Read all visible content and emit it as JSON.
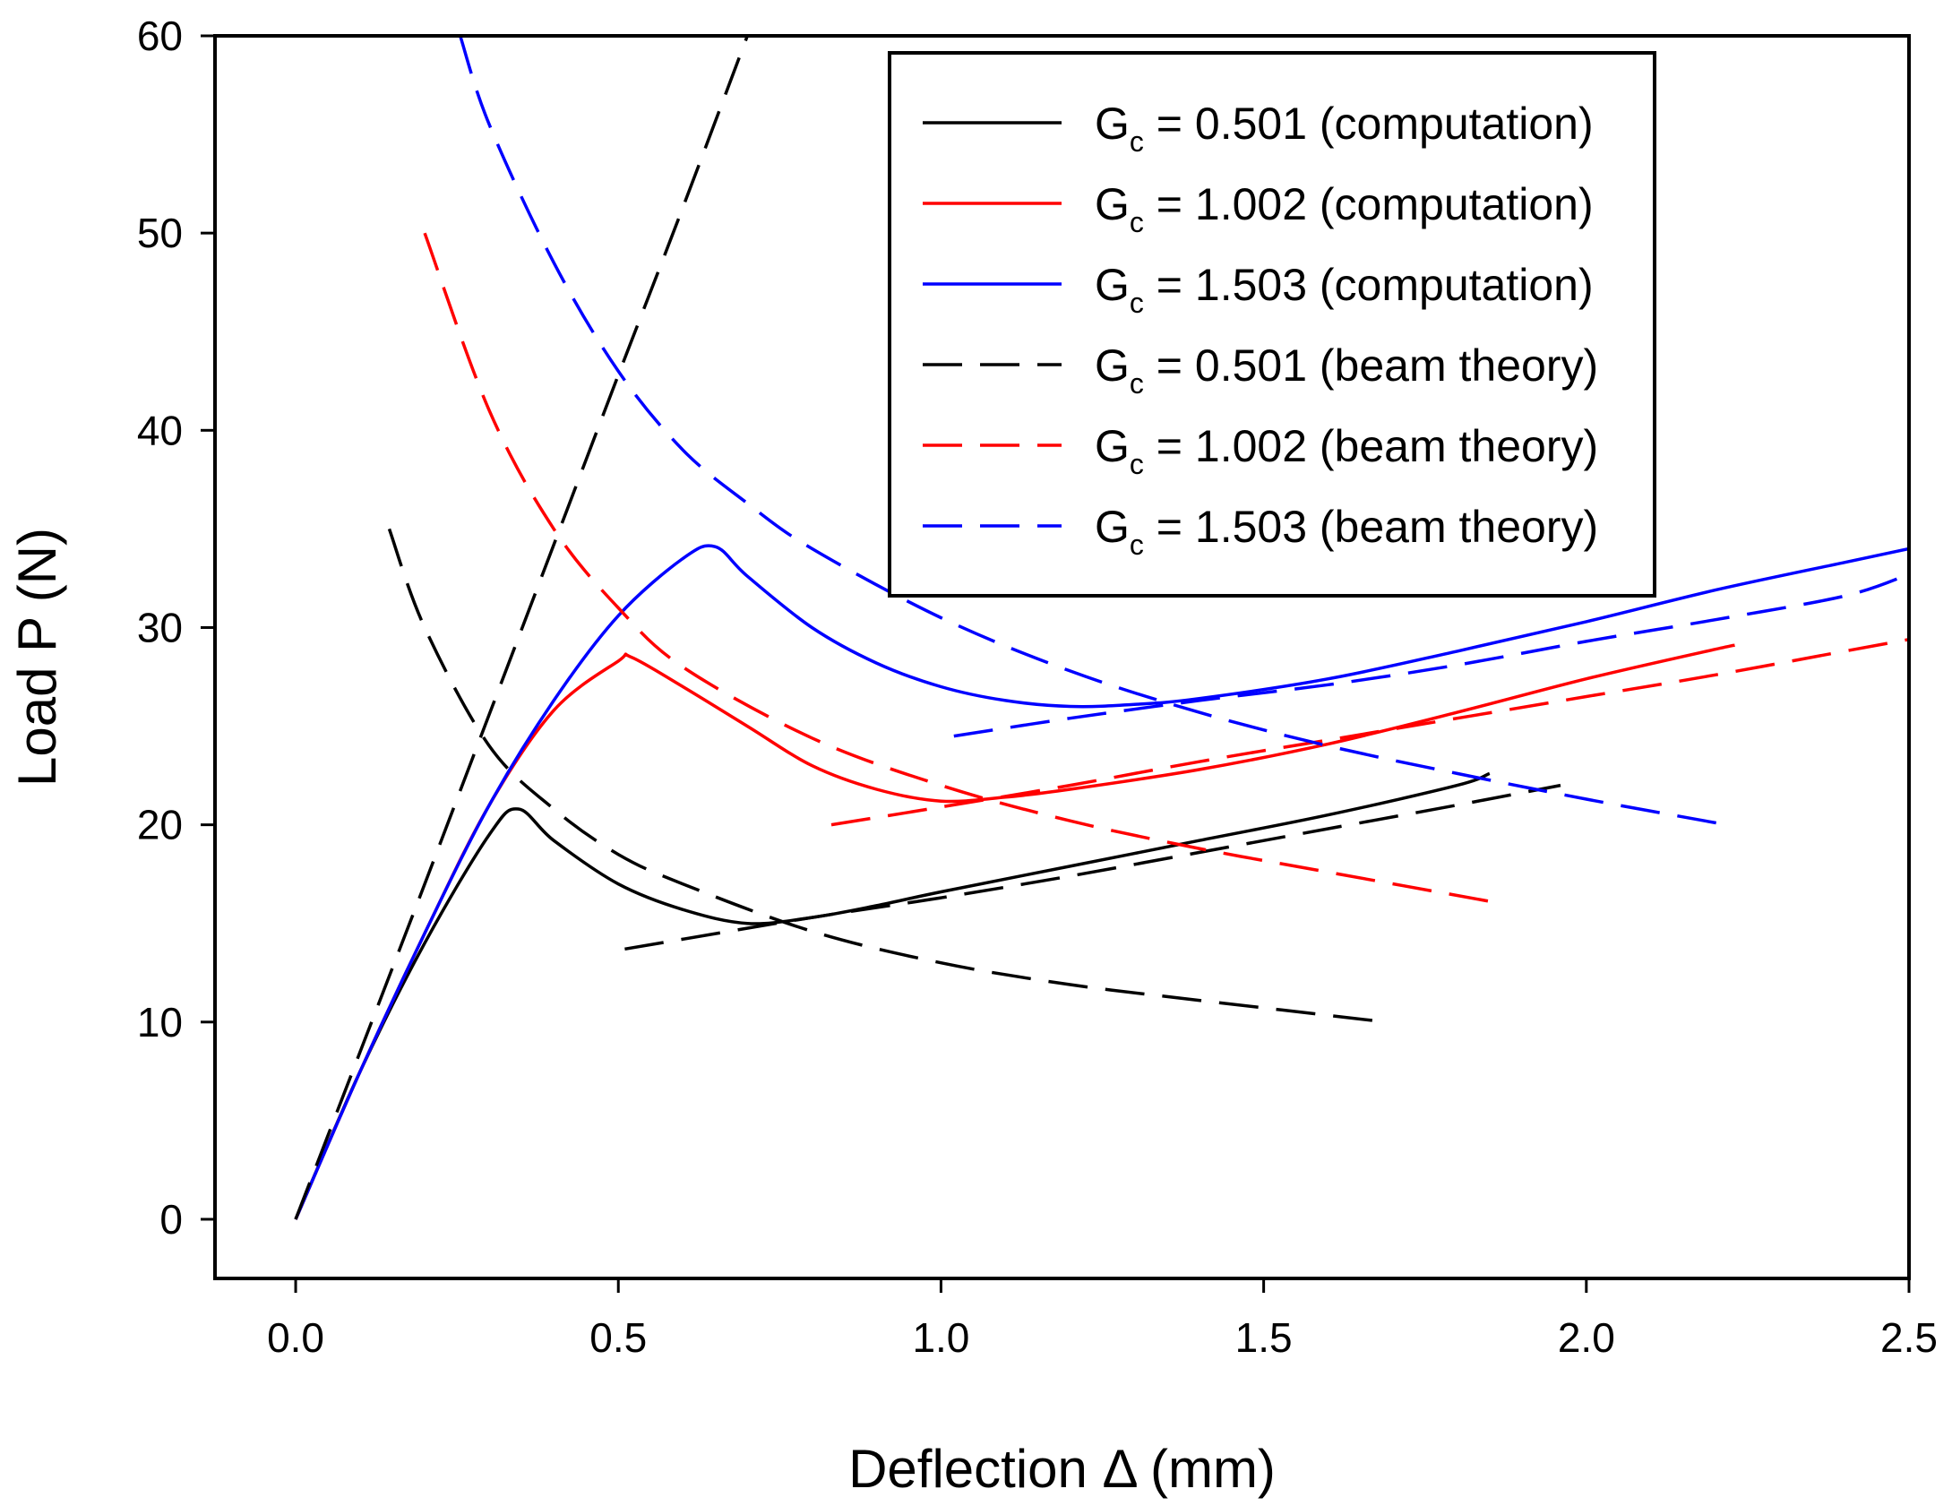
{
  "chart_data": {
    "type": "line",
    "title": "",
    "xlabel": "Deflection Δ (mm)",
    "ylabel": "Load P (N)",
    "xlim": [
      -0.125,
      2.5
    ],
    "ylim": [
      -3,
      60
    ],
    "xticks": [
      0.0,
      0.5,
      1.0,
      1.5,
      2.0,
      2.5
    ],
    "xtick_labels": [
      "0.0",
      "0.5",
      "1.0",
      "1.5",
      "2.0",
      "2.5"
    ],
    "yticks": [
      0,
      10,
      20,
      30,
      40,
      50,
      60
    ],
    "ytick_labels": [
      "0",
      "10",
      "20",
      "30",
      "40",
      "50",
      "60"
    ],
    "grid": false,
    "legend_position": "top-right",
    "series": [
      {
        "name": "Gc = 0.501 (computation)",
        "legend_main": "G",
        "legend_sub": "c",
        "legend_rest": " = 0.501 (computation)",
        "color": "#000000",
        "style": "solid",
        "x": [
          0,
          0.1,
          0.2,
          0.3,
          0.345,
          0.4,
          0.5,
          0.6,
          0.7,
          0.8,
          0.9,
          1.0,
          1.2,
          1.4,
          1.6,
          1.8,
          1.85
        ],
        "y": [
          0,
          7.5,
          14.0,
          19.5,
          20.8,
          19.2,
          17.0,
          15.7,
          15.0,
          15.3,
          15.9,
          16.6,
          17.9,
          19.2,
          20.5,
          22.0,
          22.6
        ]
      },
      {
        "name": "Gc = 1.002 (computation)",
        "legend_main": "G",
        "legend_sub": "c",
        "legend_rest": " = 1.002 (computation)",
        "color": "#ff0000",
        "style": "solid",
        "x": [
          0,
          0.1,
          0.2,
          0.3,
          0.4,
          0.5,
          0.52,
          0.6,
          0.7,
          0.8,
          0.9,
          1.0,
          1.1,
          1.2,
          1.4,
          1.6,
          1.8,
          2.0,
          2.2,
          2.23
        ],
        "y": [
          0,
          7.5,
          14.5,
          21.0,
          25.8,
          28.3,
          28.5,
          27.0,
          25.0,
          23.0,
          21.8,
          21.2,
          21.4,
          21.8,
          22.8,
          24.1,
          25.7,
          27.4,
          28.9,
          29.1
        ]
      },
      {
        "name": "Gc = 1.503 (computation)",
        "legend_main": "G",
        "legend_sub": "c",
        "legend_rest": " = 1.503 (computation)",
        "color": "#0000ff",
        "style": "solid",
        "x": [
          0,
          0.1,
          0.2,
          0.3,
          0.4,
          0.5,
          0.6,
          0.65,
          0.7,
          0.8,
          0.9,
          1.0,
          1.1,
          1.2,
          1.3,
          1.4,
          1.6,
          1.8,
          2.0,
          2.2,
          2.4,
          2.5
        ],
        "y": [
          0,
          7.5,
          14.5,
          21.0,
          26.3,
          30.6,
          33.5,
          34.1,
          32.6,
          30.0,
          28.2,
          27.0,
          26.3,
          26.0,
          26.1,
          26.4,
          27.4,
          28.8,
          30.3,
          31.9,
          33.3,
          34.0
        ]
      },
      {
        "name": "Gc = 0.501 (beam theory)",
        "legend_main": "G",
        "legend_sub": "c",
        "legend_rest": " = 0.501 (beam theory)",
        "color": "#000000",
        "style": "dashed",
        "branches": [
          {
            "x": [
              0,
              0.1,
              0.2,
              0.3,
              0.4,
              0.5,
              0.6,
              0.7
            ],
            "y": [
              0,
              8.5,
              17.0,
              25.6,
              34.2,
              42.8,
              51.3,
              60.0
            ]
          },
          {
            "x": [
              0.145,
              0.2,
              0.3,
              0.4,
              0.5,
              0.6,
              0.8,
              1.0,
              1.2,
              1.4,
              1.69
            ],
            "y": [
              35.0,
              30.0,
              24.0,
              20.8,
              18.5,
              17.0,
              14.6,
              13.0,
              11.9,
              11.1,
              10.0
            ]
          },
          {
            "x": [
              0.51,
              0.8,
              1.0,
              1.2,
              1.4,
              1.6,
              1.8,
              1.96
            ],
            "y": [
              13.7,
              15.3,
              16.3,
              17.4,
              18.6,
              19.8,
              21.0,
              22.0
            ]
          }
        ]
      },
      {
        "name": "Gc = 1.002 (beam theory)",
        "legend_main": "G",
        "legend_sub": "c",
        "legend_rest": " = 1.002 (beam theory)",
        "color": "#ff0000",
        "style": "dashed",
        "branches": [
          {
            "x": [
              0.2,
              0.3,
              0.4,
              0.5,
              0.6,
              0.8,
              1.0,
              1.2,
              1.4,
              1.6,
              1.87
            ],
            "y": [
              50.0,
              41.0,
              35.0,
              31.0,
              28.0,
              24.4,
              22.0,
              20.2,
              18.8,
              17.6,
              16.0
            ]
          },
          {
            "x": [
              0.83,
              1.0,
              1.2,
              1.4,
              1.6,
              1.8,
              2.0,
              2.2,
              2.4,
              2.5
            ],
            "y": [
              20.0,
              20.9,
              22.0,
              23.2,
              24.3,
              25.4,
              26.5,
              27.6,
              28.8,
              29.4
            ]
          }
        ]
      },
      {
        "name": "Gc = 1.503 (beam theory)",
        "legend_main": "G",
        "legend_sub": "c",
        "legend_rest": " = 1.503 (beam theory)",
        "color": "#0000ff",
        "style": "dashed",
        "branches": [
          {
            "x": [
              0.255,
              0.3,
              0.4,
              0.5,
              0.6,
              0.7,
              0.8,
              1.0,
              1.2,
              1.4,
              1.6,
              1.8,
              2.0,
              2.2,
              2.21
            ],
            "y": [
              60.0,
              55.5,
              48.5,
              43.0,
              39.0,
              36.3,
              34.0,
              30.5,
              27.8,
              25.7,
              24.0,
              22.6,
              21.3,
              20.1,
              20.0
            ]
          },
          {
            "x": [
              1.02,
              1.2,
              1.4,
              1.6,
              1.8,
              2.0,
              2.2,
              2.4,
              2.5
            ],
            "y": [
              24.5,
              25.4,
              26.3,
              27.1,
              28.1,
              29.3,
              30.4,
              31.6,
              32.7
            ]
          }
        ]
      }
    ]
  }
}
